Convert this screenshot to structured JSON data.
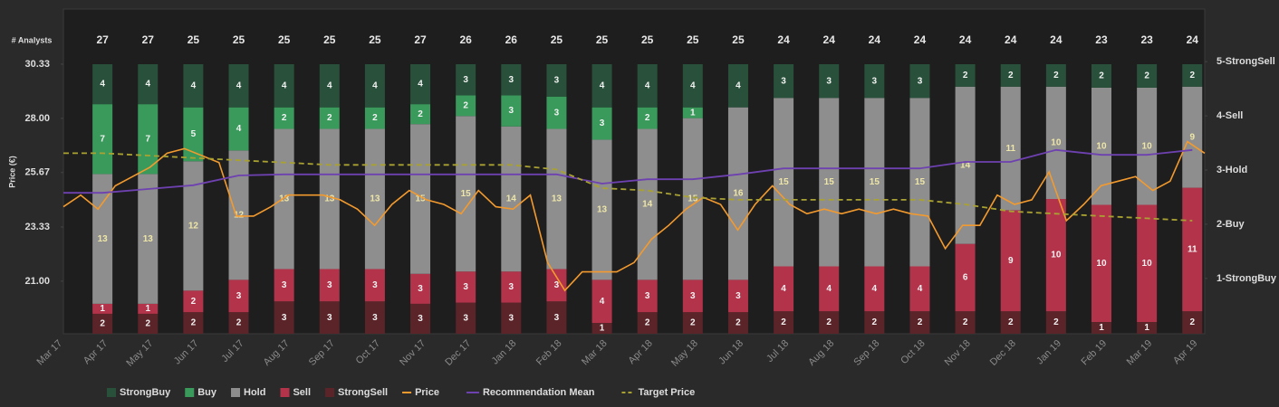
{
  "chart_data": {
    "type": "bar",
    "stacked": true,
    "normalized": true,
    "analysts_label": "# Analysts",
    "ylabel": "Price (€)",
    "categories": [
      "Mar 17",
      "Apr 17",
      "May 17",
      "Jun 17",
      "Jul 17",
      "Aug 17",
      "Sep 17",
      "Oct 17",
      "Nov 17",
      "Dec 17",
      "Jan 18",
      "Feb 18",
      "Mar 18",
      "Apr 18",
      "May 18",
      "Jun 18",
      "Jul 18",
      "Aug 18",
      "Sep 18",
      "Oct 18",
      "Nov 18",
      "Dec 18",
      "Jan 19",
      "Feb 19",
      "Mar 19",
      "Apr 19"
    ],
    "analysts": [
      null,
      27,
      27,
      25,
      25,
      25,
      25,
      25,
      27,
      26,
      26,
      25,
      25,
      25,
      25,
      25,
      24,
      24,
      24,
      24,
      24,
      24,
      24,
      23,
      23,
      24
    ],
    "series": [
      {
        "name": "StrongBuy",
        "color": "#28503a",
        "values": [
          null,
          4,
          4,
          4,
          4,
          4,
          4,
          4,
          4,
          3,
          3,
          3,
          4,
          4,
          4,
          4,
          3,
          3,
          3,
          3,
          2,
          2,
          2,
          2,
          2,
          2
        ]
      },
      {
        "name": "Buy",
        "color": "#3a9a5c",
        "values": [
          null,
          7,
          7,
          5,
          4,
          2,
          2,
          2,
          2,
          2,
          3,
          3,
          3,
          2,
          1,
          0,
          0,
          0,
          0,
          0,
          0,
          0,
          0,
          0,
          0,
          0
        ]
      },
      {
        "name": "Hold",
        "color": "#8e8e8e",
        "values": [
          null,
          13,
          13,
          12,
          12,
          13,
          13,
          13,
          15,
          15,
          14,
          13,
          13,
          14,
          15,
          16,
          15,
          15,
          15,
          15,
          14,
          11,
          10,
          10,
          10,
          9
        ]
      },
      {
        "name": "Sell",
        "color": "#b3334a",
        "values": [
          null,
          1,
          1,
          2,
          3,
          3,
          3,
          3,
          3,
          3,
          3,
          3,
          4,
          3,
          3,
          3,
          4,
          4,
          4,
          4,
          6,
          9,
          10,
          10,
          10,
          11
        ]
      },
      {
        "name": "StrongSell",
        "color": "#5a2429",
        "values": [
          null,
          2,
          2,
          2,
          2,
          3,
          3,
          3,
          3,
          3,
          3,
          3,
          1,
          2,
          2,
          2,
          2,
          2,
          2,
          2,
          2,
          2,
          2,
          1,
          1,
          2
        ]
      }
    ],
    "lines": [
      {
        "name": "Price",
        "color": "#f39a2e",
        "values": [
          24.2,
          24.7,
          24.1,
          25.1,
          25.5,
          25.9,
          26.5,
          26.7,
          26.4,
          26.1,
          23.8,
          23.8,
          24.2,
          24.7,
          24.7,
          24.7,
          24.5,
          24.1,
          23.4,
          24.3,
          24.9,
          24.5,
          24.3,
          23.9,
          24.9,
          24.2,
          24.1,
          24.7,
          21.8,
          20.6,
          21.4,
          21.4,
          21.4,
          21.8,
          22.8,
          23.4,
          24.1,
          24.6,
          24.3,
          23.2,
          24.3,
          25.1,
          24.3,
          23.9,
          24.1,
          23.9,
          24.1,
          23.9,
          24.1,
          23.9,
          23.8,
          22.4,
          23.4,
          23.4,
          24.7,
          24.3,
          24.5,
          25.7,
          23.6,
          24.3,
          25.1,
          25.3,
          25.5,
          24.9,
          25.3,
          27.0,
          26.5
        ]
      },
      {
        "name": "Recommendation Mean",
        "color": "#6e41b0",
        "axis": "y2",
        "values": [
          2.58,
          2.58,
          2.65,
          2.72,
          2.9,
          2.92,
          2.92,
          2.92,
          2.92,
          2.92,
          2.92,
          2.92,
          2.75,
          2.83,
          2.83,
          2.92,
          3.03,
          3.03,
          3.03,
          3.03,
          3.15,
          3.15,
          3.37,
          3.28,
          3.28,
          3.37
        ]
      },
      {
        "name": "Target Price",
        "color": "#a9a232",
        "dashed": true,
        "values": [
          26.5,
          26.5,
          26.4,
          26.3,
          26.2,
          26.1,
          26.0,
          26.0,
          26.0,
          26.0,
          26.0,
          25.8,
          25.0,
          24.9,
          24.6,
          24.5,
          24.5,
          24.5,
          24.5,
          24.5,
          24.3,
          24.0,
          23.9,
          23.8,
          23.7,
          23.6
        ]
      }
    ],
    "ylim": [
      18.74,
      32.7
    ],
    "yticks": [
      {
        "value": 21,
        "label": "21.00"
      },
      {
        "value": 23.33,
        "label": "23.33"
      },
      {
        "value": 25.67,
        "label": "25.67"
      },
      {
        "value": 28,
        "label": "28.00"
      },
      {
        "value": 30.33,
        "label": "30.33"
      }
    ],
    "y2lim": [
      -0.02,
      5.97
    ],
    "y2ticks": [
      {
        "value": 1,
        "label": "1-StrongBuy"
      },
      {
        "value": 2,
        "label": "2-Buy"
      },
      {
        "value": 3,
        "label": "3-Hold"
      },
      {
        "value": 4,
        "label": "4-Sell"
      },
      {
        "value": 5,
        "label": "5-StrongSell"
      }
    ],
    "grid": false,
    "legend": "bottom"
  }
}
